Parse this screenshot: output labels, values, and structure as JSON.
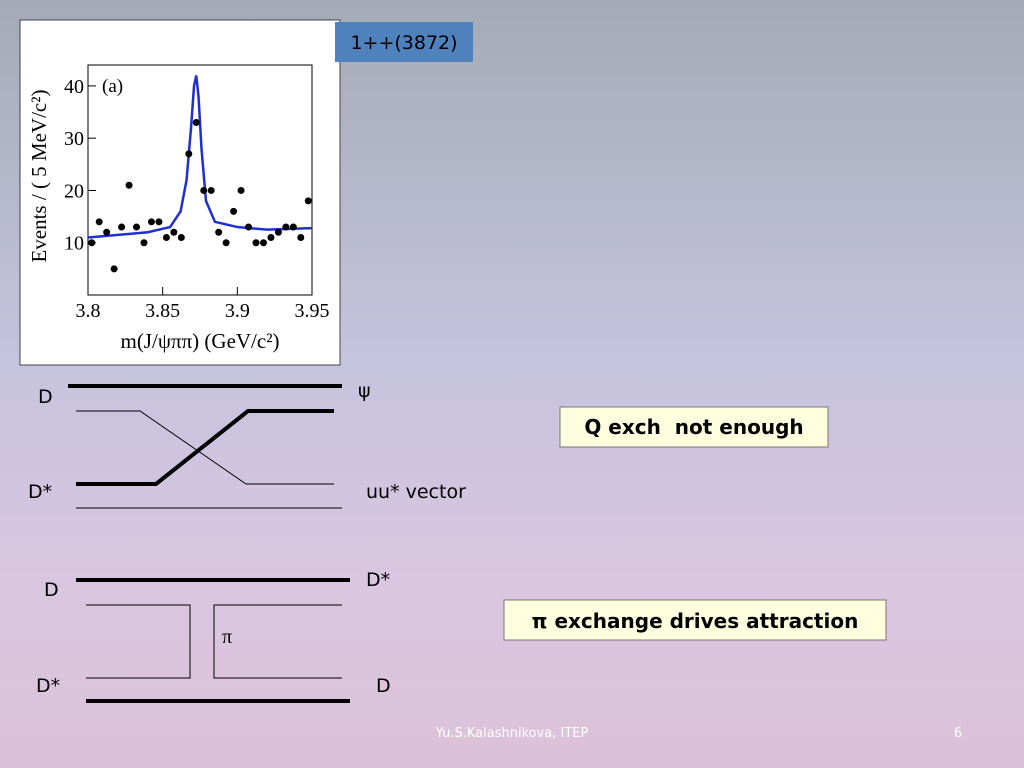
{
  "slide": {
    "tag": "1++(3872)",
    "footer": "Yu.S.Kalashnikova, ITEP",
    "page_number": "6"
  },
  "chart_data": {
    "type": "scatter",
    "panel_label": "(a)",
    "x_label": "m(J/ψππ) (GeV/c²)",
    "y_label": "Events / ( 5 MeV/c²)",
    "xlim": [
      3.8,
      3.95
    ],
    "ylim": [
      0,
      44
    ],
    "xticks": [
      3.8,
      3.85,
      3.9,
      3.95
    ],
    "yticks": [
      10,
      20,
      30,
      40
    ],
    "x": [
      3.8025,
      3.8075,
      3.8125,
      3.8175,
      3.8225,
      3.8275,
      3.8325,
      3.8375,
      3.8425,
      3.8475,
      3.8525,
      3.8575,
      3.8625,
      3.8675,
      3.8725,
      3.8775,
      3.8825,
      3.8875,
      3.8925,
      3.8975,
      3.9025,
      3.9075,
      3.9125,
      3.9175,
      3.9225,
      3.9275,
      3.9325,
      3.9375,
      3.9425,
      3.9475
    ],
    "values": [
      10,
      14,
      12,
      5,
      13,
      21,
      13,
      10,
      14,
      14,
      11,
      12,
      11,
      27,
      33,
      20,
      20,
      12,
      10,
      16,
      20,
      13,
      10,
      10,
      11,
      12,
      13,
      13,
      11,
      18
    ],
    "color": "#000000",
    "fit": {
      "color": "#1f2fd0",
      "x": [
        3.8,
        3.82,
        3.84,
        3.855,
        3.862,
        3.866,
        3.869,
        3.871,
        3.8725,
        3.874,
        3.876,
        3.879,
        3.885,
        3.9,
        3.92,
        3.95
      ],
      "values": [
        11,
        11.5,
        12,
        13,
        16,
        22,
        32,
        40,
        42,
        38,
        28,
        18,
        14,
        13,
        12.5,
        12.8
      ]
    }
  },
  "diagram": {
    "top": {
      "d_left": "D",
      "psi": "ψ",
      "dstar_left": "D*",
      "vector": "uu* vector",
      "note": "Q exch  not enough"
    },
    "bottom": {
      "d_left": "D",
      "dstar_right": "D*",
      "pi": "π",
      "dstar_left": "D*",
      "d_right": "D",
      "note": "π exchange drives attraction"
    }
  }
}
